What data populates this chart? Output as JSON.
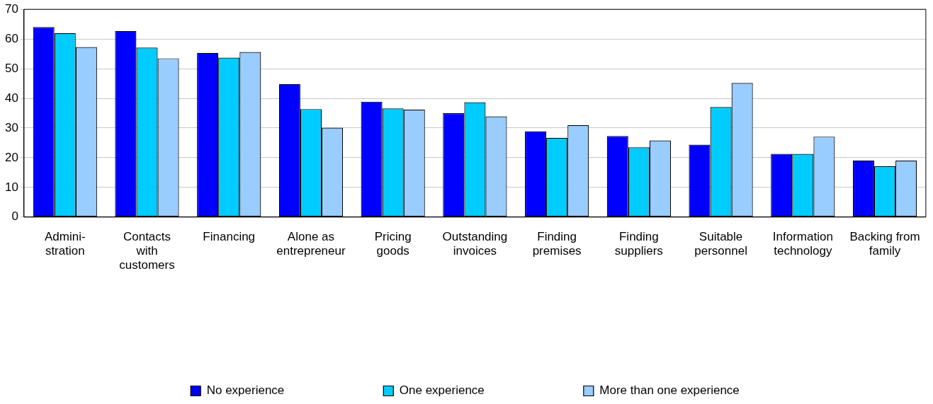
{
  "chart_data": {
    "type": "bar",
    "categories": [
      "Admini-\nstration",
      "Contacts\nwith\ncustomers",
      "Financing",
      "Alone as\nentrepreneur",
      "Pricing\ngoods",
      "Outstanding\ninvoices",
      "Finding\npremises",
      "Finding\nsuppliers",
      "Suitable\npersonnel",
      "Information\ntechnology",
      "Backing from\nfamily"
    ],
    "series": [
      {
        "name": "No experience",
        "color": "#0000ff",
        "values": [
          64.0,
          62.7,
          55.3,
          44.8,
          38.9,
          35.0,
          28.9,
          27.3,
          24.4,
          21.3,
          19.1
        ]
      },
      {
        "name": "One experience",
        "color": "#00ccff",
        "values": [
          62.0,
          57.1,
          53.7,
          36.4,
          36.6,
          38.7,
          26.7,
          23.5,
          37.1,
          21.3,
          17.1
        ]
      },
      {
        "name": "More than one experience",
        "color": "#99ccff",
        "values": [
          57.3,
          53.5,
          55.6,
          30.1,
          36.2,
          33.9,
          31.0,
          25.8,
          45.2,
          27.1,
          19.0
        ]
      }
    ],
    "ylim": [
      0,
      70
    ],
    "yticks": [
      0,
      10,
      20,
      30,
      40,
      50,
      60,
      70
    ],
    "grid": "y",
    "legend": "bottom"
  }
}
